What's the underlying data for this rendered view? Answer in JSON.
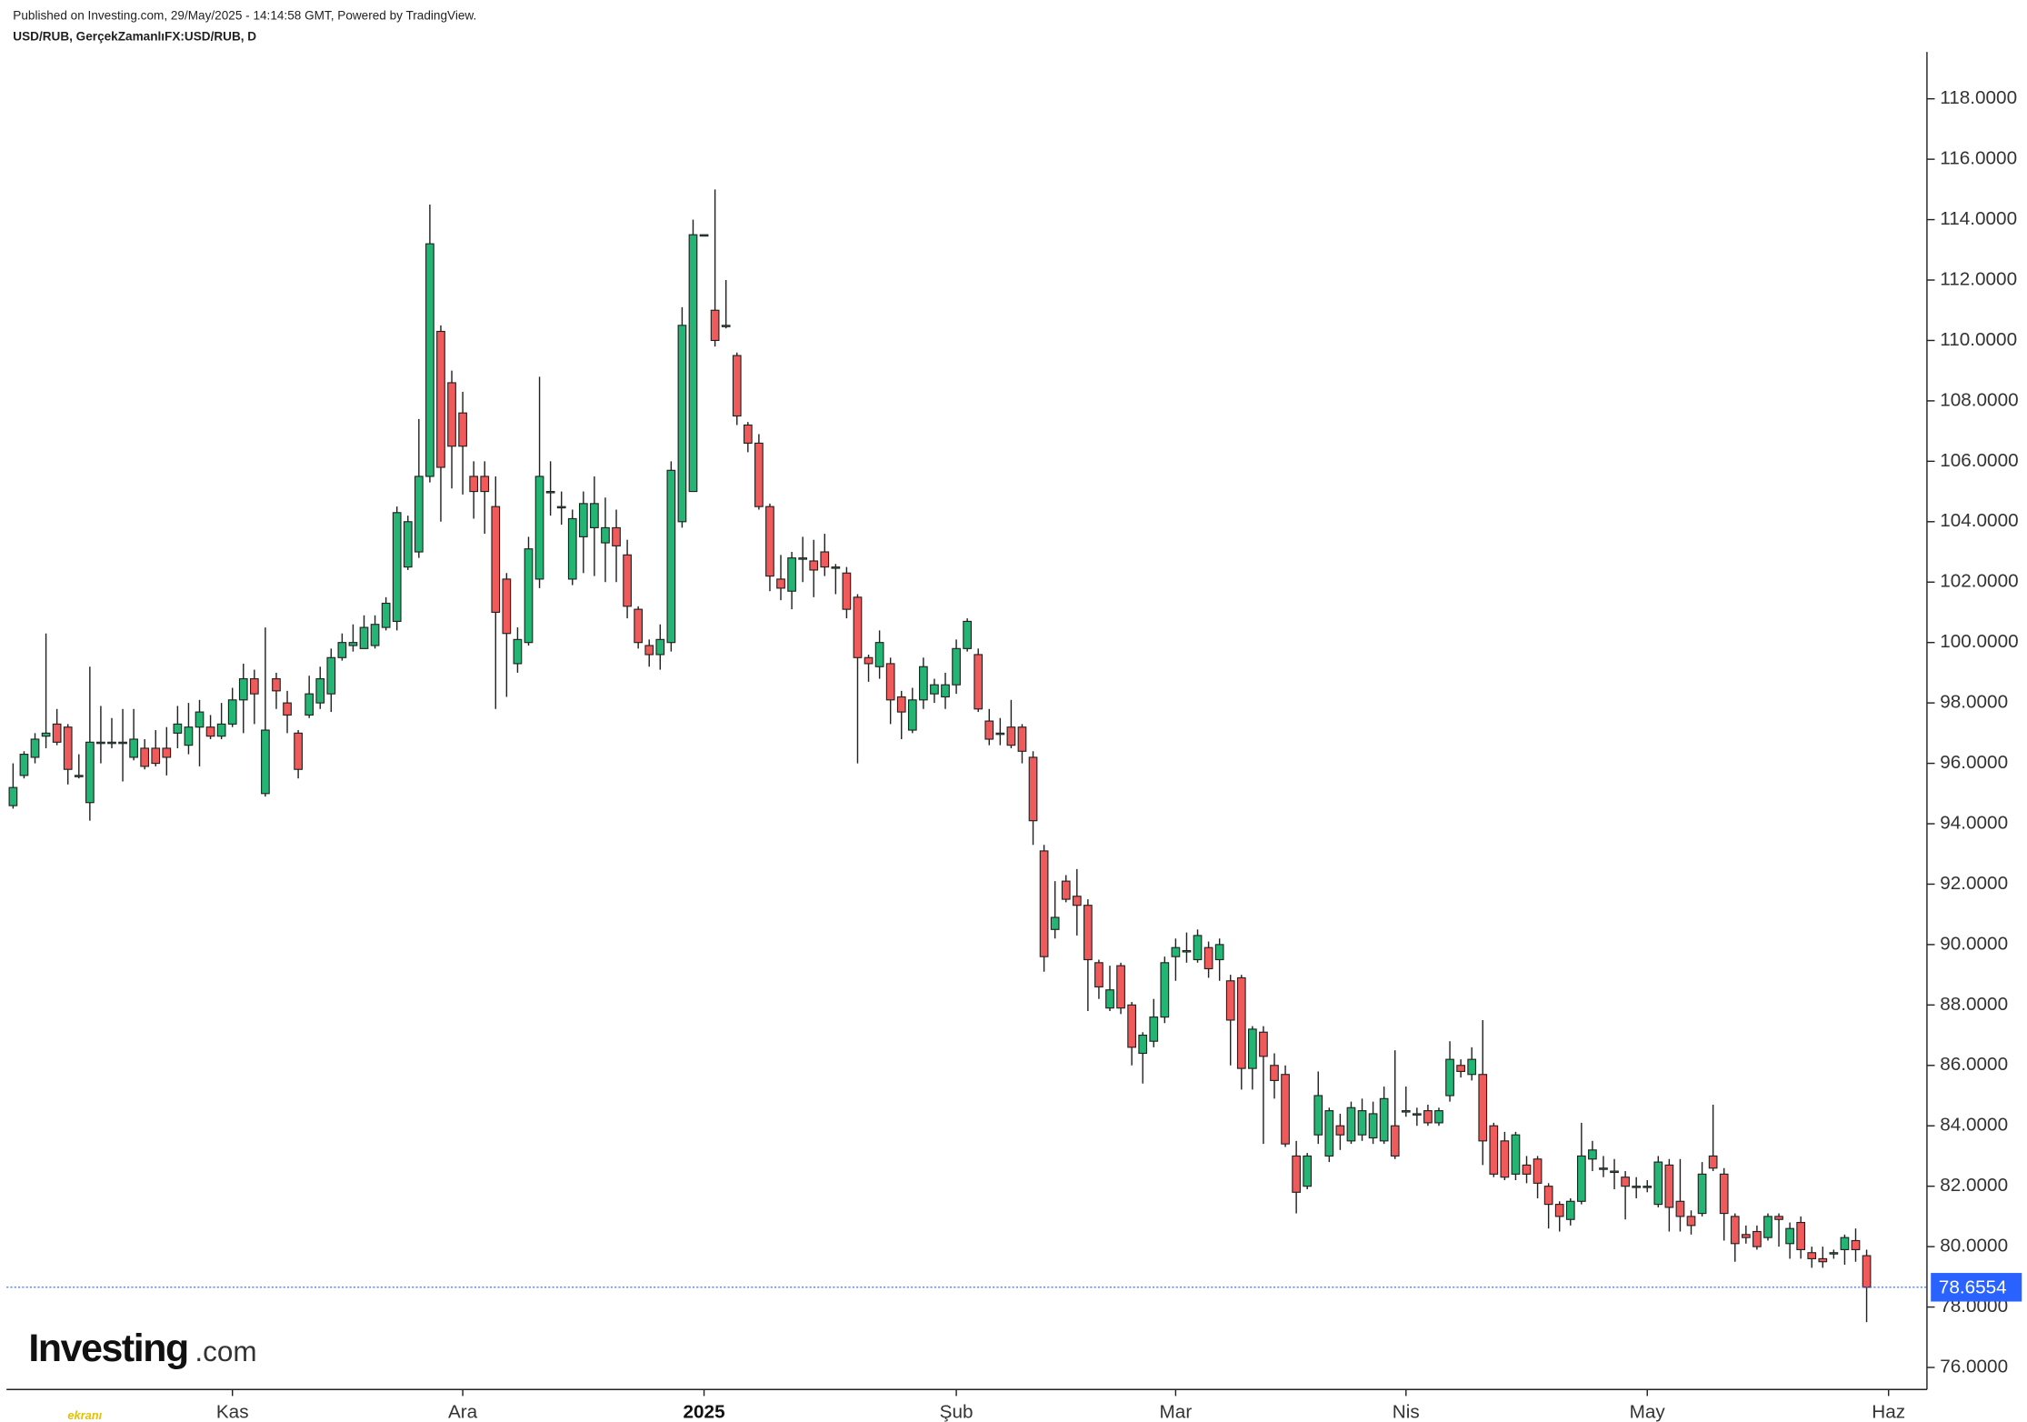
{
  "chart_data": {
    "type": "candlestick",
    "header": "Published on Investing.com, 29/May/2025 - 14:14:58 GMT, Powered by TradingView.",
    "title": "USD/RUB, GerçekZamanlıFX:USD/RUB, D",
    "logo": "Investing",
    "logo_suffix": ".com",
    "watermark": "ekranı",
    "up_color": "#22b573",
    "down_color": "#f05a5a",
    "last_price": 78.6554,
    "last_price_color": "#2962ff",
    "xlim": [
      -0.6,
      174.5
    ],
    "xticks": [
      {
        "value": 20,
        "label": "Kas"
      },
      {
        "value": 41,
        "label": "Ara"
      },
      {
        "value": 63,
        "label": "2025"
      },
      {
        "value": 86,
        "label": "Şub"
      },
      {
        "value": 106,
        "label": "Mar"
      },
      {
        "value": 127,
        "label": "Nis"
      },
      {
        "value": 149,
        "label": "May"
      },
      {
        "value": 171,
        "label": "Haz"
      }
    ],
    "ylim": [
      75.27,
      119.55
    ],
    "yticks": [
      {
        "value": 76,
        "label": "76.0000"
      },
      {
        "value": 78,
        "label": "78.0000"
      },
      {
        "value": 80,
        "label": "80.0000"
      },
      {
        "value": 82,
        "label": "82.0000"
      },
      {
        "value": 84,
        "label": "84.0000"
      },
      {
        "value": 86,
        "label": "86.0000"
      },
      {
        "value": 88,
        "label": "88.0000"
      },
      {
        "value": 90,
        "label": "90.0000"
      },
      {
        "value": 92,
        "label": "92.0000"
      },
      {
        "value": 94,
        "label": "94.0000"
      },
      {
        "value": 96,
        "label": "96.0000"
      },
      {
        "value": 98,
        "label": "98.0000"
      },
      {
        "value": 100,
        "label": "100.0000"
      },
      {
        "value": 102,
        "label": "102.0000"
      },
      {
        "value": 104,
        "label": "104.0000"
      },
      {
        "value": 106,
        "label": "106.0000"
      },
      {
        "value": 108,
        "label": "108.0000"
      },
      {
        "value": 110,
        "label": "110.0000"
      },
      {
        "value": 112,
        "label": "112.0000"
      },
      {
        "value": 114,
        "label": "114.0000"
      },
      {
        "value": 116,
        "label": "116.0000"
      },
      {
        "value": 118,
        "label": "118.0000"
      }
    ],
    "open": [
      94.6,
      95.6,
      96.2,
      96.9,
      97.3,
      97.2,
      95.6,
      94.7,
      96.7,
      96.7,
      96.7,
      96.2,
      96.5,
      96.5,
      96.5,
      97.0,
      96.6,
      97.2,
      97.2,
      96.9,
      97.3,
      98.1,
      98.8,
      95.0,
      98.8,
      98.0,
      97.0,
      97.6,
      98.0,
      98.3,
      99.5,
      99.9,
      99.8,
      99.9,
      100.5,
      100.7,
      102.5,
      103.0,
      105.5,
      110.3,
      108.6,
      107.6,
      105.5,
      105.5,
      104.5,
      102.1,
      99.3,
      100.0,
      102.1,
      105,
      104.5,
      102.1,
      103.5,
      103.8,
      103.3,
      103.8,
      102.9,
      101.1,
      99.9,
      99.6,
      100.0,
      104.0,
      105.0,
      113.5,
      111,
      110.5,
      109.5,
      107.2,
      106.6,
      104.5,
      102.1,
      101.7,
      102.8,
      102.7,
      103.0,
      102.5,
      102.3,
      101.5,
      99.5,
      99.2,
      99.3,
      98.2,
      97.1,
      98.1,
      98.3,
      98.2,
      98.6,
      99.8,
      99.6,
      97.4,
      97,
      97.2,
      97.2,
      96.2,
      93.1,
      90.5,
      92.1,
      91.6,
      91.3,
      89.4,
      87.9,
      89.3,
      88.0,
      86.4,
      86.8,
      87.6,
      89.6,
      89.8,
      89.5,
      89.9,
      89.5,
      88.8,
      88.9,
      85.9,
      87.1,
      86.0,
      85.7,
      83.0,
      82.0,
      83.7,
      83.0,
      84.0,
      83.5,
      83.7,
      83.6,
      83.5,
      84.0,
      84.5,
      84.4,
      84.5,
      84.1,
      85.0,
      86.0,
      85.7,
      85.7,
      84.0,
      83.5,
      82.4,
      82.7,
      82.9,
      82.0,
      81.4,
      80.9,
      81.5,
      82.9,
      82.6,
      82.5,
      82.3,
      82.0,
      82.0,
      81.4,
      82.7,
      81.5,
      81.0,
      81.1,
      83.0,
      82.4,
      81.0,
      80.4,
      80.5,
      80.3,
      81.0,
      80.1,
      80.8,
      79.8,
      79.6,
      79.8,
      79.9,
      80.2,
      79.7
    ],
    "high": [
      96,
      96.4,
      97,
      100.3,
      97.8,
      97.3,
      96.3,
      99.2,
      97.9,
      97.5,
      97.8,
      97.8,
      96.8,
      97.1,
      97.2,
      97.9,
      98.0,
      98.1,
      97.6,
      98,
      98.5,
      99.3,
      99.1,
      100.5,
      99,
      98.4,
      97.1,
      98.9,
      99.2,
      99.8,
      100.3,
      100.6,
      100.9,
      100.9,
      101.5,
      104.5,
      104.2,
      107.4,
      114.5,
      110.5,
      109,
      108.3,
      106,
      106,
      105.5,
      102.3,
      100.5,
      103.5,
      108.8,
      106,
      105,
      104.4,
      105,
      105.5,
      104.8,
      104.4,
      103.4,
      101.2,
      100.1,
      100.6,
      106,
      111.1,
      114,
      113.5,
      115,
      112,
      109.6,
      107.3,
      106.9,
      104.6,
      102.9,
      103,
      103.5,
      103.4,
      103.6,
      102.6,
      102.5,
      101.6,
      99.6,
      100.4,
      99.5,
      98.4,
      98.5,
      99.5,
      98.8,
      99,
      100.1,
      100.8,
      99.8,
      97.8,
      97.5,
      98.1,
      97.3,
      96.4,
      93.3,
      92.1,
      92.3,
      92.5,
      91.5,
      89.5,
      89.3,
      89.4,
      88.1,
      87.1,
      88.2,
      89.6,
      90.2,
      90.4,
      90.5,
      90.1,
      90.2,
      89,
      89,
      87.3,
      87.3,
      86.4,
      86,
      83.5,
      83.1,
      85.8,
      84.6,
      84.4,
      84.8,
      84.9,
      84.8,
      85.3,
      86.5,
      85.3,
      84.6,
      84.7,
      84.6,
      86.8,
      86.2,
      86.6,
      87.5,
      84.1,
      83.8,
      83.8,
      83,
      83,
      82.1,
      81.5,
      81.6,
      84.1,
      83.5,
      83,
      82.9,
      82.5,
      82.3,
      82.2,
      83,
      82.9,
      82.9,
      81.2,
      82.8,
      84.7,
      82.6,
      81.1,
      80.7,
      80.7,
      81.1,
      81.1,
      80.8,
      81,
      80,
      80,
      79.9,
      80.4,
      80.6,
      79.9
    ],
    "low": [
      94.5,
      95.5,
      96,
      96.5,
      96.6,
      95.3,
      95.5,
      94.1,
      96,
      96.5,
      95.4,
      96.1,
      95.8,
      95.9,
      95.6,
      96.5,
      96.3,
      95.9,
      96.8,
      96.8,
      97.2,
      97,
      97.3,
      94.9,
      97.8,
      97,
      95.5,
      97.5,
      97.8,
      97.7,
      99.4,
      99.7,
      99.8,
      99.8,
      100.4,
      100.4,
      102.4,
      102.8,
      105.3,
      104,
      105.1,
      104.9,
      104.1,
      103.6,
      97.8,
      98.2,
      99,
      99.9,
      101.8,
      104.2,
      103.9,
      101.9,
      102.3,
      102.2,
      102,
      102,
      100.8,
      99.8,
      99.2,
      99.1,
      99.7,
      103.8,
      105,
      113.5,
      109.8,
      110.4,
      107.2,
      106.3,
      104.4,
      101.7,
      101.4,
      101.1,
      102,
      101.5,
      102.2,
      101.6,
      100.8,
      96,
      98.7,
      98.8,
      97.3,
      96.8,
      97,
      97.8,
      98,
      97.8,
      98.3,
      99.7,
      97.7,
      96.6,
      96.6,
      96.5,
      96,
      93.3,
      89.1,
      90.2,
      91.4,
      90.3,
      87.8,
      88.2,
      87.8,
      87.7,
      86,
      85.4,
      86.6,
      87.4,
      88.8,
      89.4,
      89.4,
      88.9,
      88.8,
      86,
      85.2,
      85.2,
      83.4,
      84.9,
      83.3,
      81.1,
      81.9,
      83.4,
      82.8,
      83.2,
      83.4,
      83.5,
      83.4,
      83.4,
      82.9,
      84.3,
      84,
      84,
      84,
      84.8,
      85.6,
      85.5,
      82.7,
      82.3,
      82.2,
      82.2,
      82.1,
      81.6,
      80.6,
      80.5,
      80.7,
      81.4,
      82.5,
      82.3,
      81.9,
      80.9,
      81.6,
      81.8,
      81.3,
      80.5,
      80.5,
      80.4,
      81,
      82.5,
      80.2,
      79.5,
      80.1,
      79.9,
      80.2,
      80,
      79.6,
      79.6,
      79.3,
      79.3,
      79.6,
      79.4,
      79.5,
      77.5
    ],
    "close": [
      95.2,
      96.3,
      96.8,
      97.0,
      96.7,
      95.8,
      95.6,
      96.7,
      96.7,
      96.7,
      96.7,
      96.8,
      95.9,
      96.0,
      96.2,
      97.3,
      97.2,
      97.7,
      96.9,
      97.3,
      98.1,
      98.8,
      98.3,
      97.1,
      98.4,
      97.6,
      95.8,
      98.3,
      98.8,
      99.5,
      100.0,
      100.0,
      100.5,
      100.6,
      101.3,
      104.3,
      104.0,
      105.5,
      113.2,
      105.8,
      106.5,
      106.5,
      105.0,
      105.0,
      101.0,
      100.3,
      100.1,
      103.1,
      105.5,
      105,
      104.5,
      104.1,
      104.6,
      104.6,
      103.8,
      103.2,
      101.2,
      100.0,
      99.6,
      100.1,
      105.7,
      110.5,
      113.5,
      113.5,
      110,
      110.5,
      107.5,
      106.6,
      104.5,
      102.2,
      101.8,
      102.8,
      102.8,
      102.4,
      102.5,
      102.5,
      101.1,
      99.5,
      99.3,
      100.0,
      98.1,
      97.7,
      98.1,
      99.2,
      98.6,
      98.6,
      99.8,
      100.7,
      97.8,
      96.8,
      97,
      96.6,
      96.4,
      94.1,
      89.6,
      90.9,
      91.5,
      91.3,
      89.5,
      88.6,
      88.5,
      87.9,
      86.6,
      87.0,
      87.6,
      89.4,
      89.9,
      89.8,
      90.3,
      89.2,
      90.0,
      87.5,
      85.9,
      87.2,
      86.3,
      85.5,
      83.4,
      81.8,
      83.0,
      85.0,
      84.5,
      83.7,
      84.6,
      84.5,
      84.4,
      84.9,
      83.0,
      84.5,
      84.4,
      84.1,
      84.5,
      86.2,
      85.8,
      86.2,
      83.5,
      82.4,
      82.3,
      83.7,
      82.4,
      82.1,
      81.4,
      81.0,
      81.5,
      83.0,
      83.2,
      82.6,
      82.5,
      82.0,
      82.0,
      82.0,
      82.8,
      81.3,
      81.0,
      80.7,
      82.4,
      82.6,
      81.1,
      80.1,
      80.3,
      80.0,
      81.0,
      80.9,
      80.6,
      79.9,
      79.6,
      79.5,
      79.8,
      80.3,
      79.9,
      78.6554
    ]
  }
}
